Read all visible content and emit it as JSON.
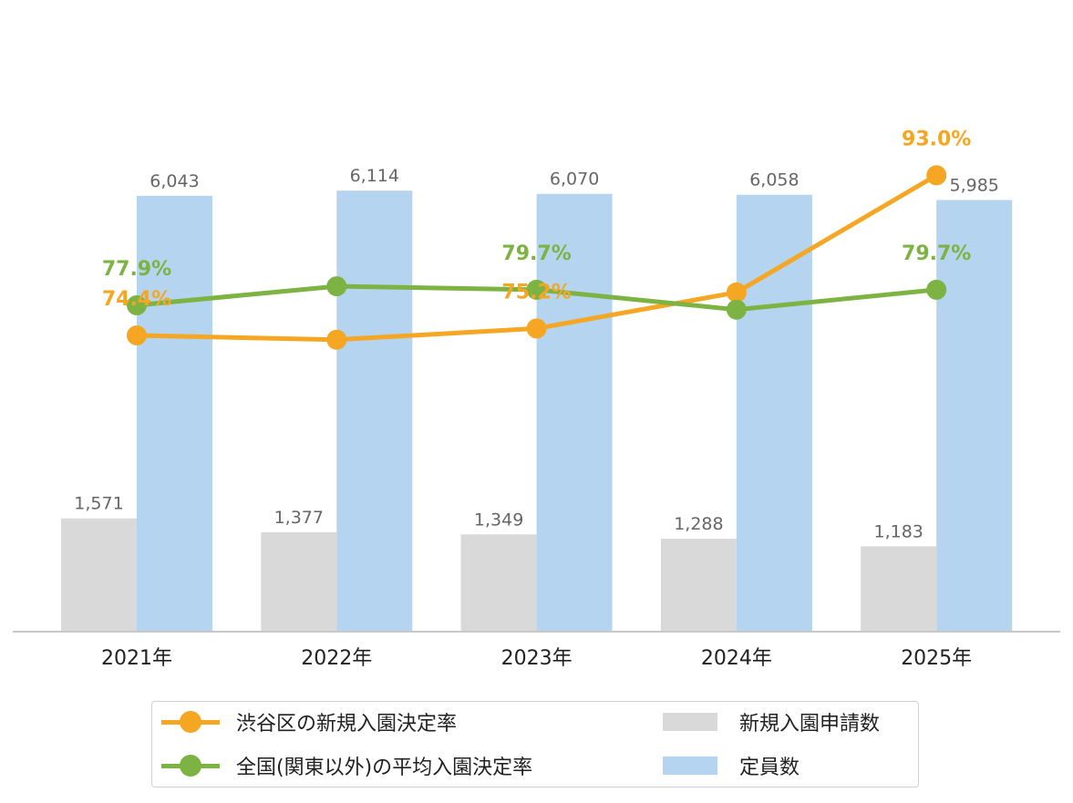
{
  "chart_data": {
    "type": "bar",
    "categories": [
      "2021年",
      "2022年",
      "2023年",
      "2024年",
      "2025年"
    ],
    "bar_series": [
      {
        "name": "新規入園申請数",
        "color": "#d9d9d9",
        "values": [
          1571,
          1377,
          1349,
          1288,
          1183
        ],
        "labels": [
          "1,571",
          "1,377",
          "1,349",
          "1,288",
          "1,183"
        ]
      },
      {
        "name": "定員数",
        "color": "#b4d4ef",
        "values": [
          6043,
          6114,
          6070,
          6058,
          5985
        ],
        "labels": [
          "6,043",
          "6,114",
          "6,070",
          "6,058",
          "5,985"
        ]
      }
    ],
    "line_series": [
      {
        "name": "渋谷区の新規入園決定率",
        "color": "#f5a623",
        "values": [
          74.4,
          73.9,
          75.2,
          79.4,
          93.0
        ],
        "labels": [
          "74.4%",
          "",
          "75.2%",
          "",
          "93.0%"
        ]
      },
      {
        "name": "全国(関東以外)の平均入園決定率",
        "color": "#7cb342",
        "values": [
          77.9,
          80.1,
          79.7,
          77.4,
          79.7
        ],
        "labels": [
          "77.9%",
          "",
          "79.7%",
          "",
          "79.7%"
        ]
      }
    ],
    "bar_ylim": [
      0,
      8000
    ],
    "line_ylim": [
      40,
      107
    ],
    "grid": false,
    "legend_position": "bottom"
  },
  "legend": {
    "items": [
      {
        "label": "渋谷区の新規入園決定率"
      },
      {
        "label": "新規入園申請数"
      },
      {
        "label": "全国(関東以外)の平均入園決定率"
      },
      {
        "label": "定員数"
      }
    ]
  }
}
